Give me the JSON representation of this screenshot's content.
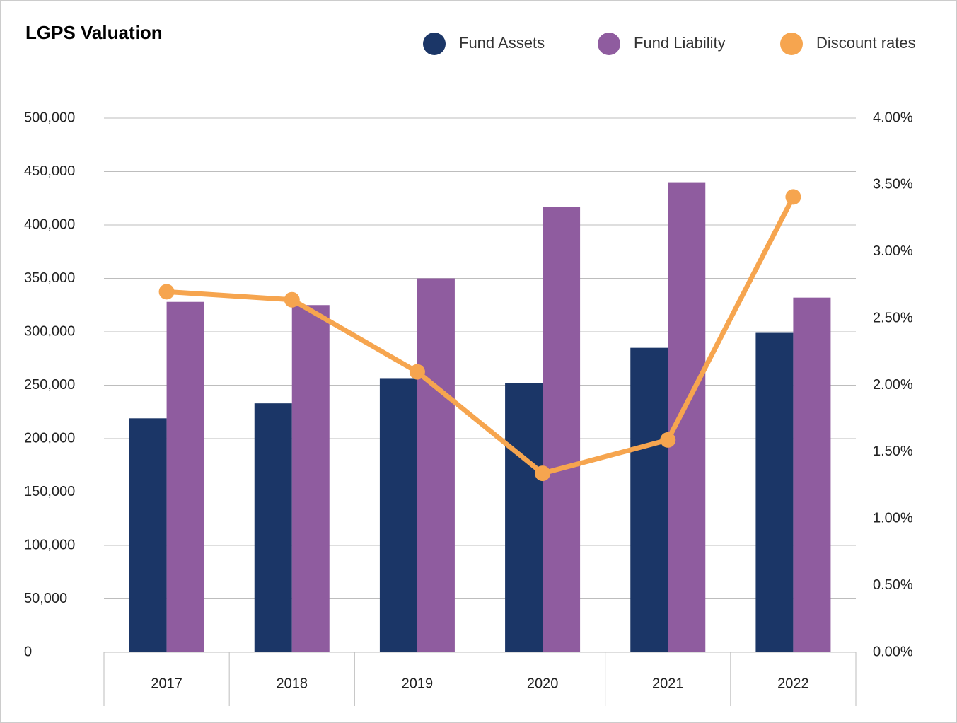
{
  "chart_data": {
    "type": "bar_line",
    "title": "LGPS Valuation",
    "categories": [
      "2017",
      "2018",
      "2019",
      "2020",
      "2021",
      "2022"
    ],
    "series": [
      {
        "name": "Fund Assets",
        "color": "#1b3667",
        "type": "bar",
        "values": [
          219000,
          233000,
          256000,
          252000,
          285000,
          299000
        ]
      },
      {
        "name": "Fund Liability",
        "color": "#8f5c9f",
        "type": "bar",
        "values": [
          328000,
          325000,
          350000,
          417000,
          440000,
          332000
        ]
      },
      {
        "name": "Discount rates",
        "color": "#f6a54f",
        "type": "line",
        "axis": "y2",
        "values": [
          2.7,
          2.64,
          2.1,
          1.34,
          1.59,
          3.41
        ]
      }
    ],
    "ylim": [
      0,
      500000
    ],
    "yticks": [
      0,
      {
        "value": 50000,
        "label": "50,000"
      },
      {
        "value": 100000,
        "label": "100,000"
      },
      {
        "value": 150000,
        "label": "150,000"
      },
      {
        "value": 200000,
        "label": "200,000"
      },
      {
        "value": 250000,
        "label": "250,000"
      },
      {
        "value": 300000,
        "label": "300,000"
      },
      {
        "value": 350000,
        "label": "350,000"
      },
      {
        "value": 400000,
        "label": "400,000"
      },
      {
        "value": 450000,
        "label": "450,000"
      },
      {
        "value": 500000,
        "label": "500,000"
      }
    ],
    "y2lim": [
      0,
      4
    ],
    "y2ticks": [
      {
        "value": 0,
        "label": "0.00%"
      },
      {
        "value": 0.5,
        "label": "0.50%"
      },
      {
        "value": 1,
        "label": "1.00%"
      },
      {
        "value": 1.5,
        "label": "1.50%"
      },
      {
        "value": 2,
        "label": "2.00%"
      },
      {
        "value": 2.5,
        "label": "2.50%"
      },
      {
        "value": 3,
        "label": "3.00%"
      },
      {
        "value": 3.5,
        "label": "3.50%"
      },
      {
        "value": 4,
        "label": "4.00%"
      }
    ],
    "grid": true,
    "legend": "top-right"
  }
}
